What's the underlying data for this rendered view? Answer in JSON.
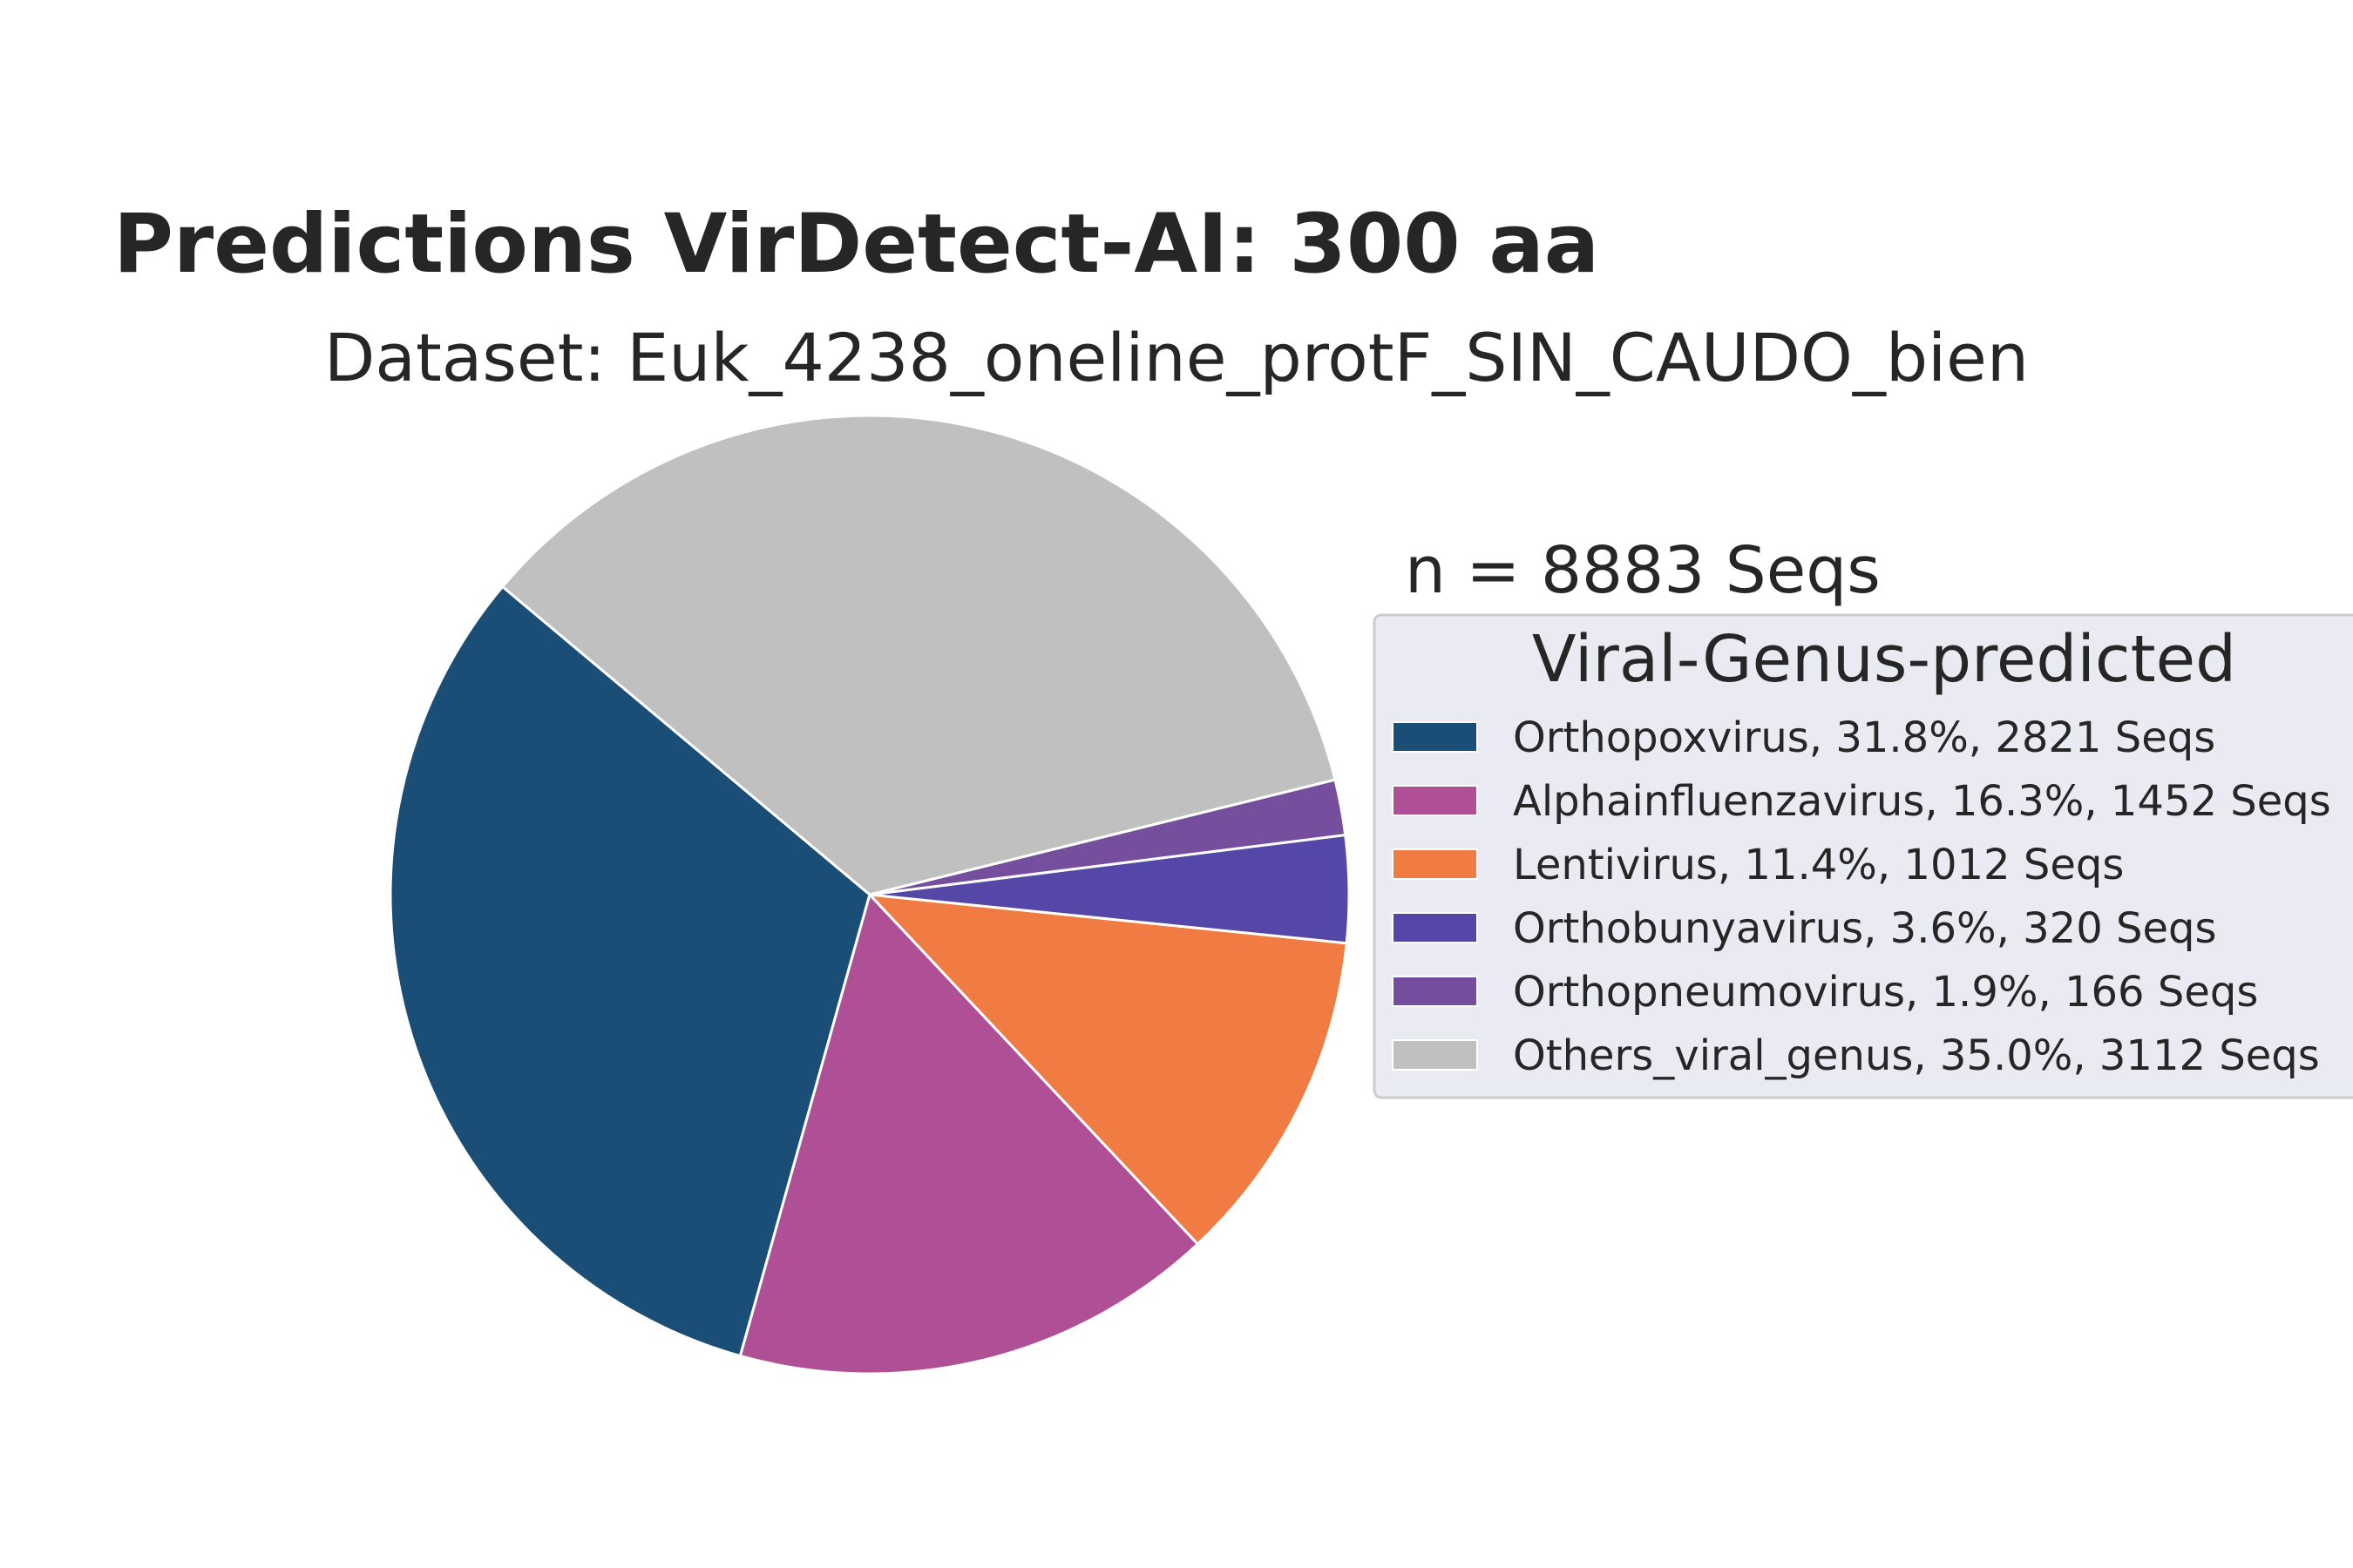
{
  "chart_data": {
    "type": "pie",
    "title": "Predictions VirDetect-AI: 300 aa",
    "subtitle": "Dataset: Euk_4238_oneline_protF_SIN_CAUDO_bien",
    "annotation": "n = 8883 Seqs",
    "legend": {
      "title": "Viral-Genus-predicted",
      "placement": "right"
    },
    "slices": [
      {
        "label": "Orthopoxvirus, 31.8%, 2821 Seqs",
        "value": 2821,
        "color": "#1b4e76"
      },
      {
        "label": "Alphainfluenzavirus, 16.3%, 1452 Seqs",
        "value": 1452,
        "color": "#af5096"
      },
      {
        "label": "Lentivirus, 11.4%, 1012 Seqs",
        "value": 1012,
        "color": "#f07b43"
      },
      {
        "label": "Orthobunyavirus, 3.6%, 320 Seqs",
        "value": 320,
        "color": "#5547a7"
      },
      {
        "label": "Orthopneumovirus, 1.9%, 166 Seqs",
        "value": 166,
        "color": "#754f9e"
      },
      {
        "label": "Others_viral_genus, 35.0%, 3112 Seqs",
        "value": 3112,
        "color": "#c0c0c0"
      }
    ],
    "start_angle_deg": 140,
    "direction": "counterclockwise"
  }
}
